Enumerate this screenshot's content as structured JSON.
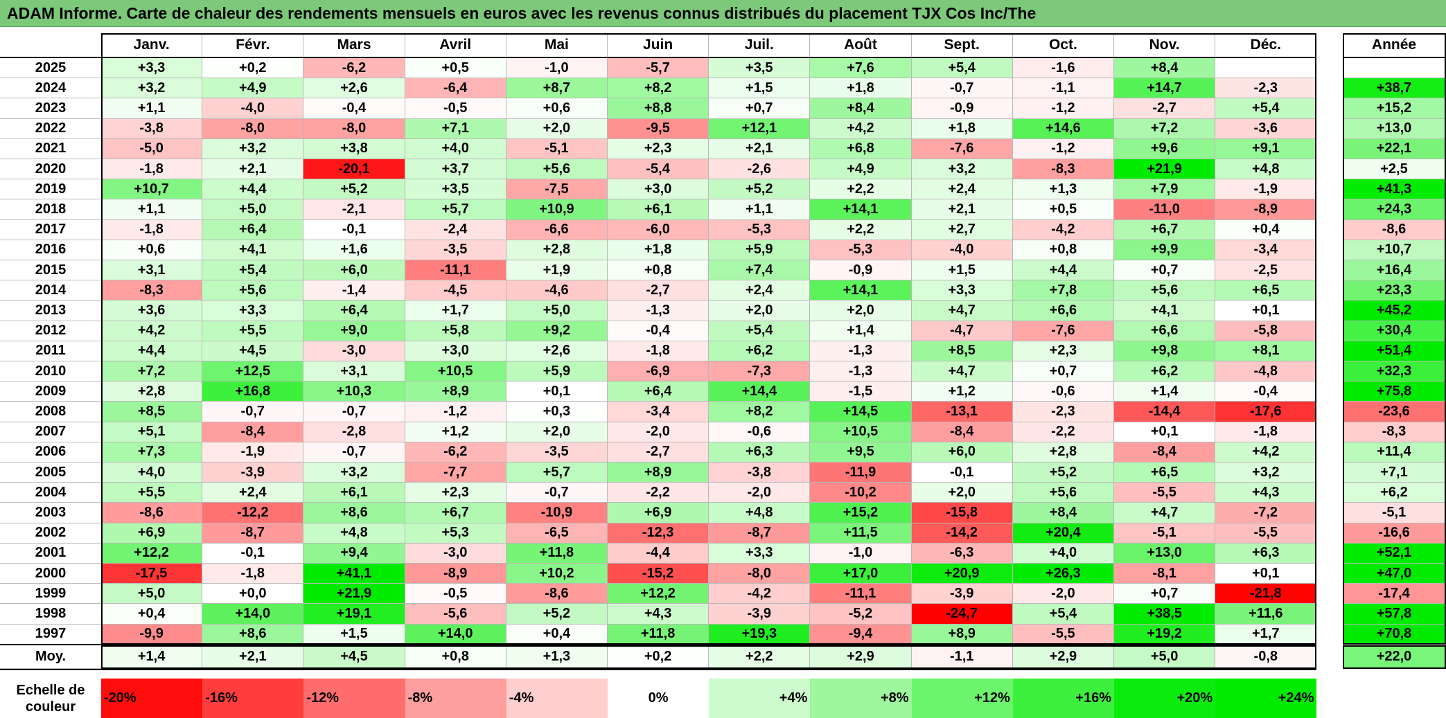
{
  "title": "ADAM Informe. Carte de chaleur des rendements mensuels en euros avec les revenus connus distribués du placement TJX Cos Inc/The",
  "chart_data": {
    "type": "heatmap",
    "title": "ADAM Informe. Carte de chaleur des rendements mensuels en euros avec les revenus connus distribués du placement TJX Cos Inc/The",
    "columns": [
      "Janv.",
      "Févr.",
      "Mars",
      "Avril",
      "Mai",
      "Juin",
      "Juil.",
      "Août",
      "Sept.",
      "Oct.",
      "Nov.",
      "Déc."
    ],
    "year_column": "Année",
    "rows": [
      {
        "label": "2025",
        "values": [
          "+3,3",
          "+0,2",
          "-6,2",
          "+0,5",
          "-1,0",
          "-5,7",
          "+3,5",
          "+7,6",
          "+5,4",
          "-1,6",
          "+8,4",
          ""
        ],
        "year": ""
      },
      {
        "label": "2024",
        "values": [
          "+3,2",
          "+4,9",
          "+2,6",
          "-6,4",
          "+8,7",
          "+8,2",
          "+1,5",
          "+1,8",
          "-0,7",
          "-1,1",
          "+14,7",
          "-2,3"
        ],
        "year": "+38,7"
      },
      {
        "label": "2023",
        "values": [
          "+1,1",
          "-4,0",
          "-0,4",
          "-0,5",
          "+0,6",
          "+8,8",
          "+0,7",
          "+8,4",
          "-0,9",
          "-1,2",
          "-2,7",
          "+5,4"
        ],
        "year": "+15,2"
      },
      {
        "label": "2022",
        "values": [
          "-3,8",
          "-8,0",
          "-8,0",
          "+7,1",
          "+2,0",
          "-9,5",
          "+12,1",
          "+4,2",
          "+1,8",
          "+14,6",
          "+7,2",
          "-3,6"
        ],
        "year": "+13,0"
      },
      {
        "label": "2021",
        "values": [
          "-5,0",
          "+3,2",
          "+3,8",
          "+4,0",
          "-5,1",
          "+2,3",
          "+2,1",
          "+6,8",
          "-7,6",
          "-1,2",
          "+9,6",
          "+9,1"
        ],
        "year": "+22,1"
      },
      {
        "label": "2020",
        "values": [
          "-1,8",
          "+2,1",
          "-20,1",
          "+3,7",
          "+5,6",
          "-5,4",
          "-2,6",
          "+4,9",
          "+3,2",
          "-8,3",
          "+21,9",
          "+4,8"
        ],
        "year": "+2,5"
      },
      {
        "label": "2019",
        "values": [
          "+10,7",
          "+4,4",
          "+5,2",
          "+3,5",
          "-7,5",
          "+3,0",
          "+5,2",
          "+2,2",
          "+2,4",
          "+1,3",
          "+7,9",
          "-1,9"
        ],
        "year": "+41,3"
      },
      {
        "label": "2018",
        "values": [
          "+1,1",
          "+5,0",
          "-2,1",
          "+5,7",
          "+10,9",
          "+6,1",
          "+1,1",
          "+14,1",
          "+2,1",
          "+0,5",
          "-11,0",
          "-8,9"
        ],
        "year": "+24,3"
      },
      {
        "label": "2017",
        "values": [
          "-1,8",
          "+6,4",
          "-0,1",
          "-2,4",
          "-6,6",
          "-6,0",
          "-5,3",
          "+2,2",
          "+2,7",
          "-4,2",
          "+6,7",
          "+0,4"
        ],
        "year": "-8,6"
      },
      {
        "label": "2016",
        "values": [
          "+0,6",
          "+4,1",
          "+1,6",
          "-3,5",
          "+2,8",
          "+1,8",
          "+5,9",
          "-5,3",
          "-4,0",
          "+0,8",
          "+9,9",
          "-3,4"
        ],
        "year": "+10,7"
      },
      {
        "label": "2015",
        "values": [
          "+3,1",
          "+5,4",
          "+6,0",
          "-11,1",
          "+1,9",
          "+0,8",
          "+7,4",
          "-0,9",
          "+1,5",
          "+4,4",
          "+0,7",
          "-2,5"
        ],
        "year": "+16,4"
      },
      {
        "label": "2014",
        "values": [
          "-8,3",
          "+5,6",
          "-1,4",
          "-4,5",
          "-4,6",
          "-2,7",
          "+2,4",
          "+14,1",
          "+3,3",
          "+7,8",
          "+5,6",
          "+6,5"
        ],
        "year": "+23,3"
      },
      {
        "label": "2013",
        "values": [
          "+3,6",
          "+3,3",
          "+6,4",
          "+1,7",
          "+5,0",
          "-1,3",
          "+2,0",
          "+2,0",
          "+4,7",
          "+6,6",
          "+4,1",
          "+0,1"
        ],
        "year": "+45,2"
      },
      {
        "label": "2012",
        "values": [
          "+4,2",
          "+5,5",
          "+9,0",
          "+5,8",
          "+9,2",
          "-0,4",
          "+5,4",
          "+1,4",
          "-4,7",
          "-7,6",
          "+6,6",
          "-5,8"
        ],
        "year": "+30,4"
      },
      {
        "label": "2011",
        "values": [
          "+4,4",
          "+4,5",
          "-3,0",
          "+3,0",
          "+2,6",
          "-1,8",
          "+6,2",
          "-1,3",
          "+8,5",
          "+2,3",
          "+9,8",
          "+8,1"
        ],
        "year": "+51,4"
      },
      {
        "label": "2010",
        "values": [
          "+7,2",
          "+12,5",
          "+3,1",
          "+10,5",
          "+5,9",
          "-6,9",
          "-7,3",
          "-1,3",
          "+4,7",
          "+0,7",
          "+6,2",
          "-4,8"
        ],
        "year": "+32,3"
      },
      {
        "label": "2009",
        "values": [
          "+2,8",
          "+16,8",
          "+10,3",
          "+8,9",
          "+0,1",
          "+6,4",
          "+14,4",
          "-1,5",
          "+1,2",
          "-0,6",
          "+1,4",
          "-0,4"
        ],
        "year": "+75,8"
      },
      {
        "label": "2008",
        "values": [
          "+8,5",
          "-0,7",
          "-0,7",
          "-1,2",
          "+0,3",
          "-3,4",
          "+8,2",
          "+14,5",
          "-13,1",
          "-2,3",
          "-14,4",
          "-17,6"
        ],
        "year": "-23,6"
      },
      {
        "label": "2007",
        "values": [
          "+5,1",
          "-8,4",
          "-2,8",
          "+1,2",
          "+2,0",
          "-2,0",
          "-0,6",
          "+10,5",
          "-8,4",
          "-2,2",
          "+0,1",
          "-1,8"
        ],
        "year": "-8,3"
      },
      {
        "label": "2006",
        "values": [
          "+7,3",
          "-1,9",
          "-0,7",
          "-6,2",
          "-3,5",
          "-2,7",
          "+6,3",
          "+9,5",
          "+6,0",
          "+2,8",
          "-8,4",
          "+4,2"
        ],
        "year": "+11,4"
      },
      {
        "label": "2005",
        "values": [
          "+4,0",
          "-3,9",
          "+3,2",
          "-7,7",
          "+5,7",
          "+8,9",
          "-3,8",
          "-11,9",
          "-0,1",
          "+5,2",
          "+6,5",
          "+3,2"
        ],
        "year": "+7,1"
      },
      {
        "label": "2004",
        "values": [
          "+5,5",
          "+2,4",
          "+6,1",
          "+2,3",
          "-0,7",
          "-2,2",
          "-2,0",
          "-10,2",
          "+2,0",
          "+5,6",
          "-5,5",
          "+4,3"
        ],
        "year": "+6,2"
      },
      {
        "label": "2003",
        "values": [
          "-8,6",
          "-12,2",
          "+8,6",
          "+6,7",
          "-10,9",
          "+6,9",
          "+4,8",
          "+15,2",
          "-15,8",
          "+8,4",
          "+4,7",
          "-7,2"
        ],
        "year": "-5,1"
      },
      {
        "label": "2002",
        "values": [
          "+6,9",
          "-8,7",
          "+4,8",
          "+5,3",
          "-6,5",
          "-12,3",
          "-8,7",
          "+11,5",
          "-14,2",
          "+20,4",
          "-5,1",
          "-5,5"
        ],
        "year": "-16,6"
      },
      {
        "label": "2001",
        "values": [
          "+12,2",
          "-0,1",
          "+9,4",
          "-3,0",
          "+11,8",
          "-4,4",
          "+3,3",
          "-1,0",
          "-6,3",
          "+4,0",
          "+13,0",
          "+6,3"
        ],
        "year": "+52,1"
      },
      {
        "label": "2000",
        "values": [
          "-17,5",
          "-1,8",
          "+41,1",
          "-8,9",
          "+10,2",
          "-15,2",
          "-8,0",
          "+17,0",
          "+20,9",
          "+26,3",
          "-8,1",
          "+0,1"
        ],
        "year": "+47,0"
      },
      {
        "label": "1999",
        "values": [
          "+5,0",
          "+0,0",
          "+21,9",
          "-0,5",
          "-8,6",
          "+12,2",
          "-4,2",
          "-11,1",
          "-3,9",
          "-2,0",
          "+0,7",
          "-21,8"
        ],
        "year": "-17,4"
      },
      {
        "label": "1998",
        "values": [
          "+0,4",
          "+14,0",
          "+19,1",
          "-5,6",
          "+5,2",
          "+4,3",
          "-3,9",
          "-5,2",
          "-24,7",
          "+5,4",
          "+38,5",
          "+11,6"
        ],
        "year": "+57,8"
      },
      {
        "label": "1997",
        "values": [
          "-9,9",
          "+8,6",
          "+1,5",
          "+14,0",
          "+0,4",
          "+11,8",
          "+19,3",
          "-9,4",
          "+8,9",
          "-5,5",
          "+19,2",
          "+1,7"
        ],
        "year": "+70,8"
      }
    ],
    "average_row": {
      "label": "Moy.",
      "values": [
        "+1,4",
        "+2,1",
        "+4,5",
        "+0,8",
        "+1,3",
        "+0,2",
        "+2,2",
        "+2,9",
        "-1,1",
        "+2,9",
        "+5,0",
        "-0,8"
      ],
      "year": "+22,0"
    },
    "legend": {
      "label": "Echelle de couleur",
      "items": [
        "-20%",
        "-16%",
        "-12%",
        "-8%",
        "-4%",
        "0%",
        "+4%",
        "+8%",
        "+12%",
        "+16%",
        "+20%",
        "+24%"
      ],
      "values": [
        -20,
        -16,
        -12,
        -8,
        -4,
        0,
        4,
        8,
        12,
        16,
        20,
        24
      ]
    },
    "colors": {
      "negative_max": "#ff0000",
      "zero": "#ffffff",
      "positive_max": "#00ee00",
      "title_bar": "#7dc97a"
    }
  }
}
